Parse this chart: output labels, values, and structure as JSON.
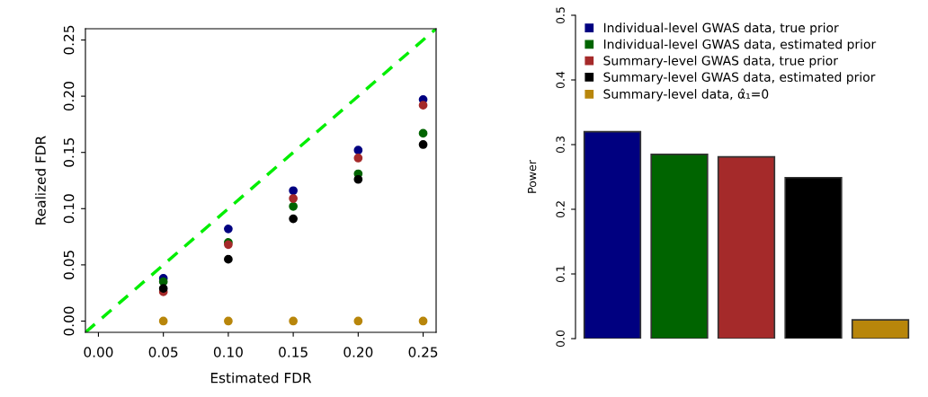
{
  "chart_data": [
    {
      "type": "scatter",
      "xlabel": "Estimated FDR",
      "ylabel": "Realized FDR",
      "x": [
        0.05,
        0.1,
        0.15,
        0.2,
        0.25
      ],
      "xlim": [
        -0.01,
        0.26
      ],
      "ylim": [
        -0.01,
        0.26
      ],
      "xticks": [
        {
          "value": 0,
          "label": "0.00"
        },
        {
          "value": 0.05,
          "label": "0.05"
        },
        {
          "value": 0.1,
          "label": "0.10"
        },
        {
          "value": 0.15,
          "label": "0.15"
        },
        {
          "value": 0.2,
          "label": "0.20"
        },
        {
          "value": 0.25,
          "label": "0.25"
        }
      ],
      "yticks": [
        {
          "value": 0,
          "label": "0.00"
        },
        {
          "value": 0.05,
          "label": "0.05"
        },
        {
          "value": 0.1,
          "label": "0.10"
        },
        {
          "value": 0.15,
          "label": "0.15"
        },
        {
          "value": 0.2,
          "label": "0.20"
        },
        {
          "value": 0.25,
          "label": "0.25"
        }
      ],
      "grid": false,
      "legend": false,
      "series": [
        {
          "color": "#000080",
          "marker": "circle",
          "values": [
            0.038,
            0.082,
            0.116,
            0.152,
            0.197
          ]
        },
        {
          "color": "#006400",
          "marker": "circle",
          "values": [
            0.035,
            0.07,
            0.102,
            0.131,
            0.167
          ]
        },
        {
          "color": "#a52a2a",
          "marker": "circle",
          "values": [
            0.026,
            0.068,
            0.109,
            0.145,
            0.192
          ]
        },
        {
          "color": "#000000",
          "marker": "circle",
          "values": [
            0.029,
            0.055,
            0.091,
            0.126,
            0.157
          ]
        },
        {
          "color": "#b8860b",
          "marker": "circle",
          "values": [
            0,
            0,
            0,
            0,
            0
          ]
        },
        {
          "type": "line",
          "x": [
            -0.01,
            0.26
          ],
          "color": "#00ee00",
          "line_style": "dashed",
          "values": [
            -0.01,
            0.26
          ]
        }
      ]
    },
    {
      "type": "bar",
      "ylabel": "Power",
      "categories": [
        null,
        null,
        null,
        null,
        null
      ],
      "ylim": [
        0,
        0.5
      ],
      "yticks": [
        {
          "value": 0,
          "label": "0.0"
        },
        {
          "value": 0.1,
          "label": "0.1"
        },
        {
          "value": 0.2,
          "label": "0.2"
        },
        {
          "value": 0.3,
          "label": "0.3"
        },
        {
          "value": 0.4,
          "label": "0.4"
        },
        {
          "value": 0.5,
          "label": "0.5"
        }
      ],
      "grid": false,
      "legend": "top left",
      "stacked": true,
      "tick_labels": "y",
      "series": [
        {
          "name": "Individual-level GWAS data, true prior",
          "color": "#000080",
          "values": [
            0.32,
            null,
            null,
            null,
            null
          ]
        },
        {
          "name": "Individual-level GWAS data, estimated prior",
          "color": "#006400",
          "values": [
            null,
            0.285,
            null,
            null,
            null
          ]
        },
        {
          "name": "Summary-level GWAS data, true prior",
          "color": "#a52a2a",
          "values": [
            null,
            null,
            0.281,
            null,
            null
          ]
        },
        {
          "name": "Summary-level GWAS data, estimated prior",
          "color": "#000000",
          "values": [
            null,
            null,
            null,
            0.249,
            null
          ]
        },
        {
          "name": "Summary-level data, α̂₁=0",
          "color": "#b8860b",
          "values": [
            null,
            null,
            null,
            null,
            0.029
          ]
        }
      ]
    }
  ]
}
